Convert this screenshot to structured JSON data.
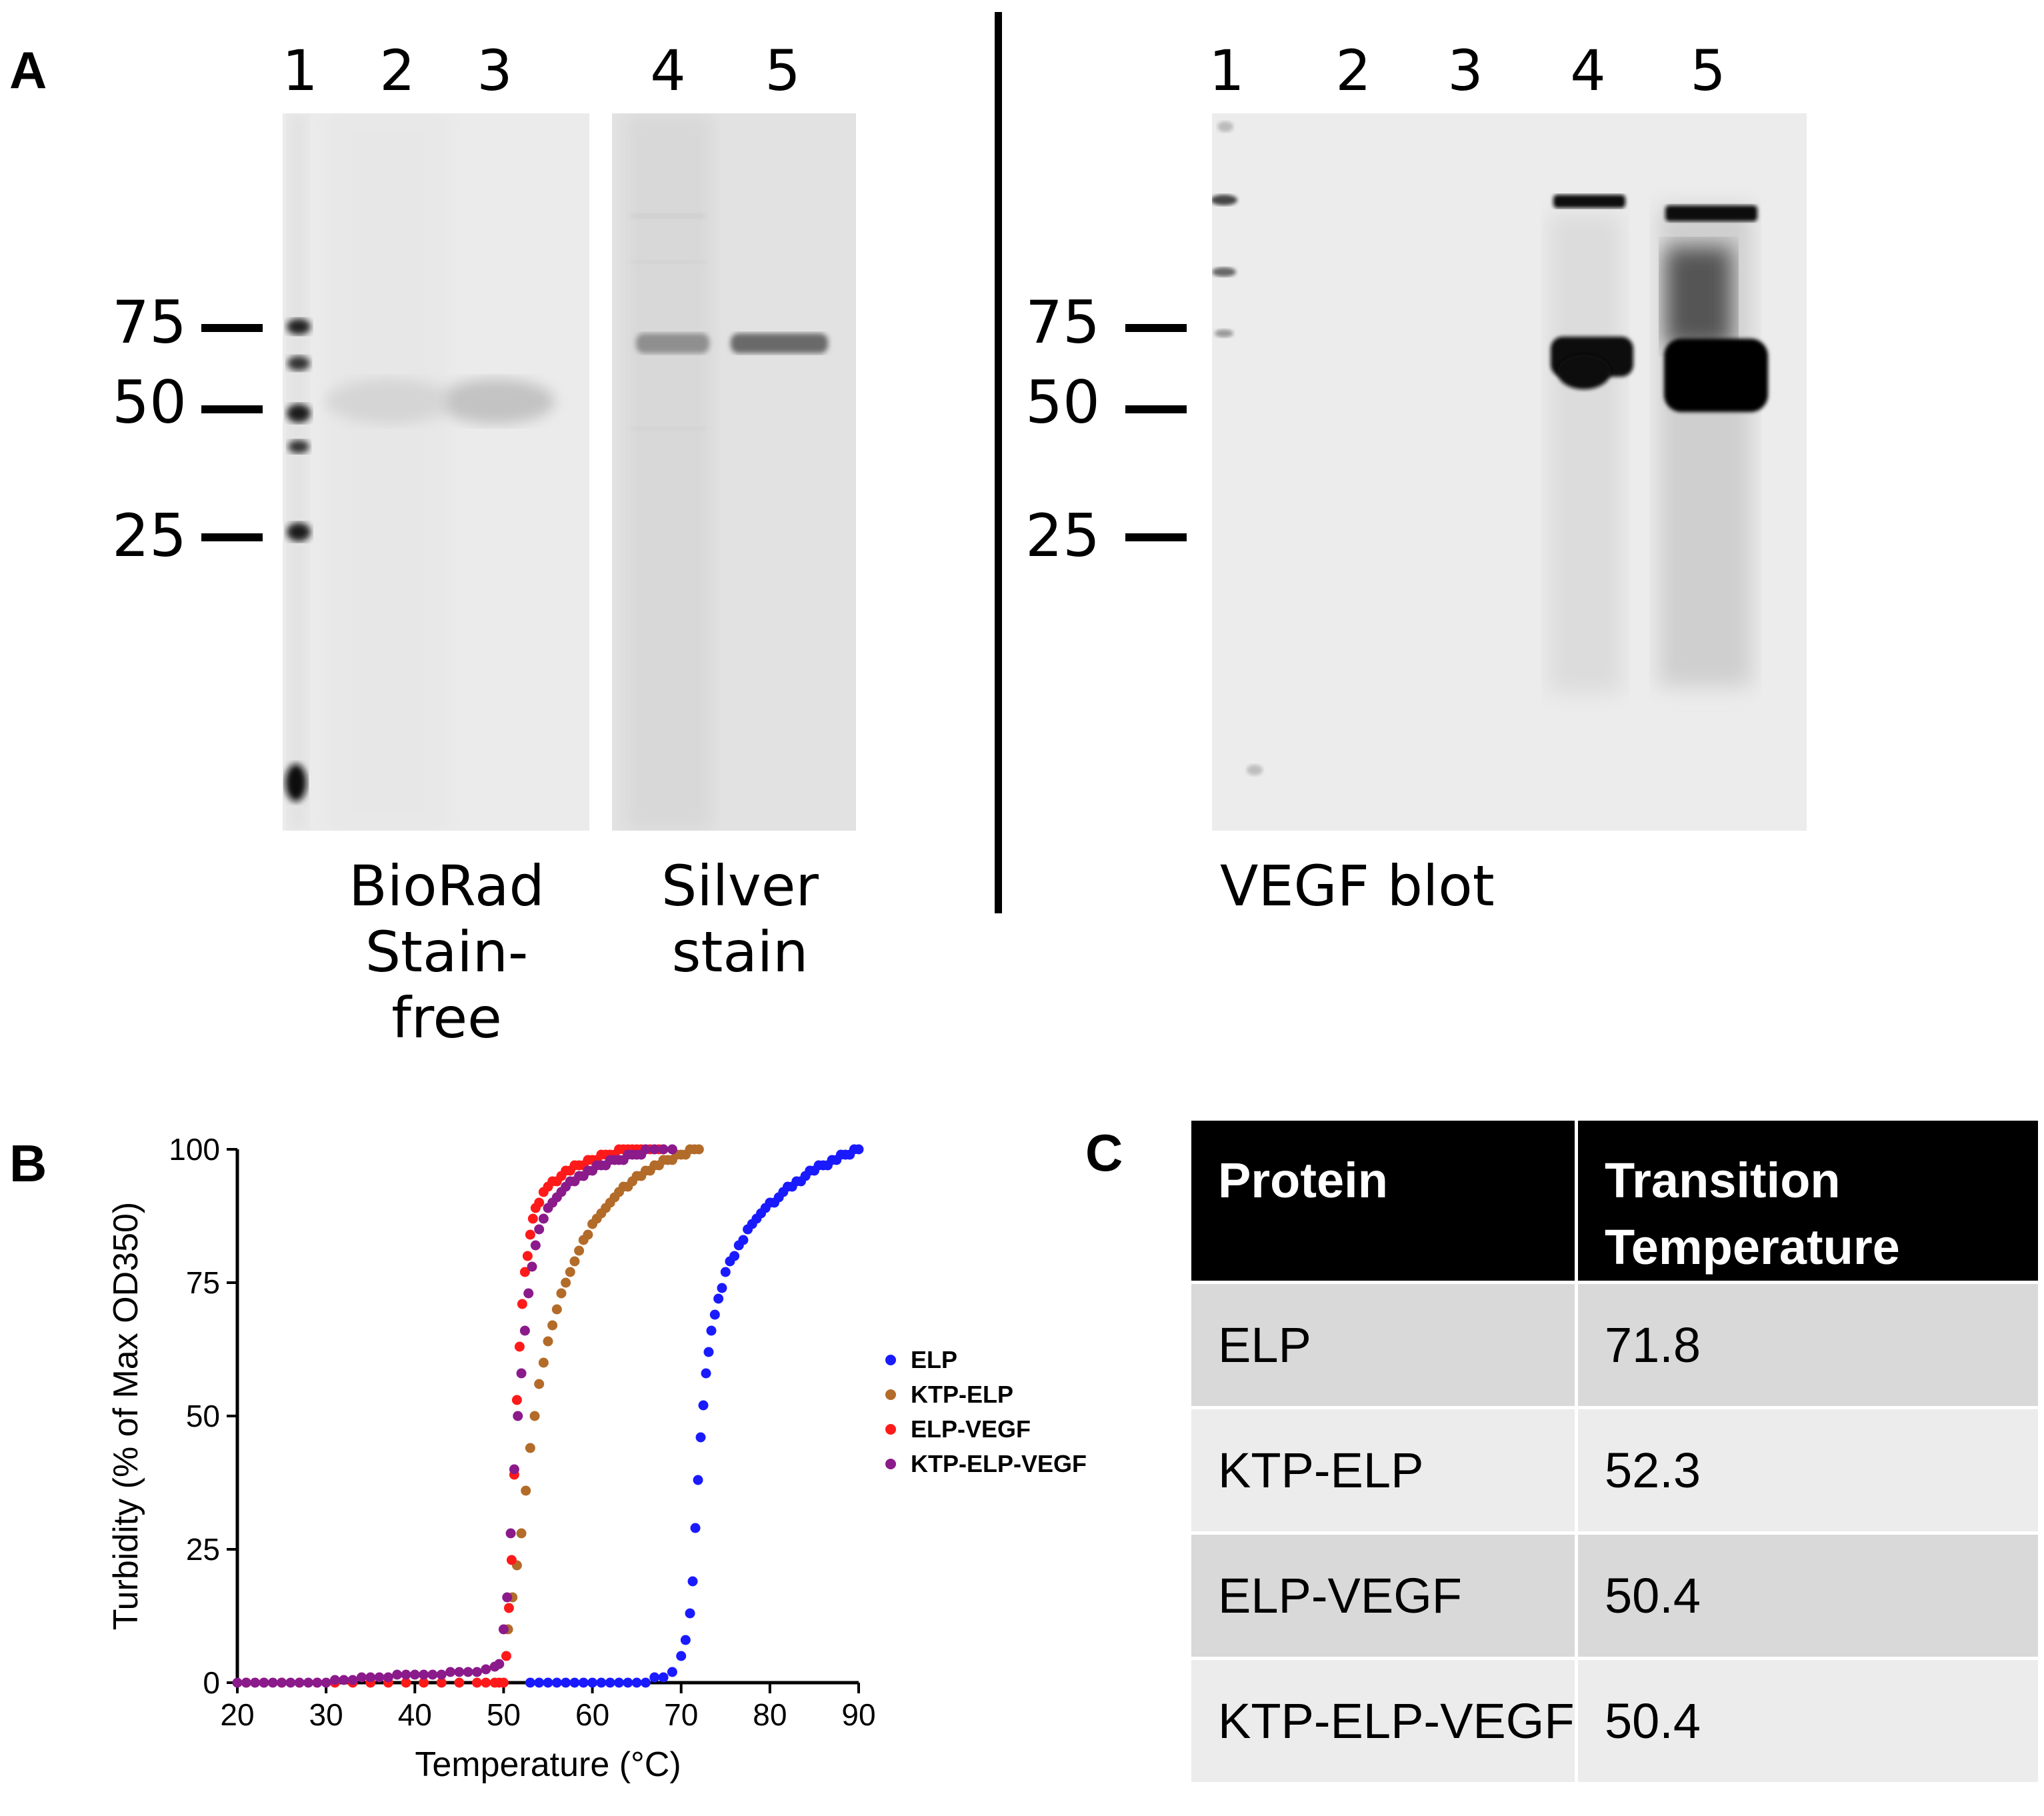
{
  "panel_a": {
    "letter": "A",
    "lanes_left": [
      "1",
      "2",
      "3",
      "4",
      "5"
    ],
    "lanes_right": [
      "1",
      "2",
      "3",
      "4",
      "5"
    ],
    "mw_markers": [
      "75",
      "50",
      "25"
    ],
    "gel_labels": {
      "stainfree": "BioRad Stain-free",
      "silver": "Silver stain",
      "blot": "VEGF blot"
    }
  },
  "panel_b": {
    "letter": "B"
  },
  "panel_c": {
    "letter": "C",
    "table": {
      "headers": [
        "Protein",
        "Transition Temperature"
      ],
      "rows": [
        [
          "ELP",
          "71.8"
        ],
        [
          "KTP-ELP",
          "52.3"
        ],
        [
          "ELP-VEGF",
          "50.4"
        ],
        [
          "KTP-ELP-VEGF",
          "50.4"
        ]
      ]
    }
  },
  "chart_data": {
    "type": "scatter",
    "xlabel": "Temperature (°C)",
    "ylabel": "Turbidity (% of Max OD350)",
    "xlim": [
      20,
      90
    ],
    "ylim": [
      0,
      100
    ],
    "xticks": [
      20,
      30,
      40,
      50,
      60,
      70,
      80,
      90
    ],
    "yticks": [
      0,
      25,
      50,
      75,
      100
    ],
    "legend_position": "right",
    "grid": false,
    "series": [
      {
        "name": "ELP",
        "color": "#1a1aff",
        "x": [
          53,
          54,
          55,
          56,
          57,
          58,
          59,
          60,
          61,
          62,
          63,
          64,
          65,
          66,
          67,
          68,
          69,
          70,
          70.5,
          71,
          71.3,
          71.6,
          71.9,
          72.2,
          72.5,
          72.8,
          73.1,
          73.4,
          73.8,
          74.2,
          74.6,
          75,
          75.5,
          76,
          76.5,
          77,
          77.5,
          78,
          78.5,
          79,
          79.5,
          80,
          80.5,
          81,
          81.5,
          82,
          82.5,
          83,
          83.5,
          84,
          84.5,
          85,
          85.5,
          86,
          86.5,
          87,
          87.5,
          88,
          88.5,
          89,
          89.5,
          90
        ],
        "y": [
          0,
          0,
          0,
          0,
          0,
          0,
          0,
          0,
          0,
          0,
          0,
          0,
          0,
          0,
          1,
          1,
          2,
          5,
          8,
          13,
          19,
          29,
          38,
          46,
          52,
          58,
          62,
          66,
          69,
          72,
          74,
          77,
          79,
          80,
          82,
          83,
          85,
          86,
          87,
          88,
          89,
          90,
          90,
          91,
          92,
          93,
          93,
          94,
          94,
          95,
          96,
          96,
          97,
          97,
          97,
          98,
          98,
          99,
          99,
          99,
          100,
          100
        ]
      },
      {
        "name": "KTP-ELP",
        "color": "#b36b29",
        "x": [
          50.5,
          51,
          51.5,
          52,
          52.5,
          53,
          53.5,
          54,
          54.5,
          55,
          55.5,
          56,
          56.5,
          57,
          57.5,
          58,
          58.5,
          59,
          59.5,
          60,
          60.5,
          61,
          61.5,
          62,
          62.5,
          63,
          63.5,
          64,
          64.5,
          65,
          65.5,
          66,
          66.5,
          67,
          67.5,
          68,
          68.5,
          69,
          69.5,
          70,
          70.5,
          71,
          71.5,
          72
        ],
        "y": [
          10,
          16,
          22,
          28,
          36,
          44,
          50,
          56,
          60,
          64,
          67,
          70,
          73,
          75,
          77,
          79,
          81,
          83,
          84,
          86,
          87,
          88,
          89,
          90,
          91,
          92,
          93,
          93,
          94,
          95,
          95,
          96,
          96,
          97,
          97,
          98,
          98,
          98,
          99,
          99,
          99,
          100,
          100,
          100
        ]
      },
      {
        "name": "ELP-VEGF",
        "color": "#ff1a1a",
        "x": [
          21,
          23,
          25,
          27,
          29,
          31,
          33,
          35,
          37,
          39,
          41,
          43,
          45,
          47,
          48,
          49,
          49.5,
          50,
          50.3,
          50.6,
          50.9,
          51.2,
          51.5,
          51.8,
          52.1,
          52.4,
          52.7,
          53,
          53.3,
          53.6,
          54,
          54.5,
          55,
          55.5,
          56,
          56.5,
          57,
          57.5,
          58,
          58.5,
          59,
          59.5,
          60,
          60.5,
          61,
          61.5,
          62,
          62.5,
          63,
          63.5,
          64,
          64.5,
          65,
          65.5,
          66,
          66.5,
          67,
          67.5,
          68
        ],
        "y": [
          0,
          0,
          0,
          0,
          0,
          0,
          0,
          0,
          0,
          0,
          0,
          0,
          0,
          0,
          0,
          0,
          0,
          0,
          5,
          14,
          23,
          39,
          53,
          63,
          71,
          77,
          80,
          84,
          87,
          89,
          90,
          92,
          93,
          94,
          94,
          95,
          96,
          96,
          97,
          97,
          97,
          98,
          98,
          98,
          99,
          99,
          99,
          99,
          100,
          100,
          100,
          100,
          100,
          100,
          100,
          100,
          100,
          100,
          100
        ]
      },
      {
        "name": "KTP-ELP-VEGF",
        "color": "#8b1a8b",
        "x": [
          20,
          21,
          22,
          23,
          24,
          25,
          26,
          27,
          28,
          29,
          30,
          31,
          32,
          33,
          34,
          35,
          36,
          37,
          38,
          39,
          40,
          41,
          42,
          43,
          44,
          45,
          46,
          47,
          48,
          49,
          49.5,
          50,
          50.4,
          50.8,
          51.2,
          51.6,
          52,
          52.4,
          52.8,
          53.2,
          53.6,
          54,
          54.5,
          55,
          55.5,
          56,
          56.5,
          57,
          57.5,
          58,
          58.5,
          59,
          59.5,
          60,
          60.5,
          61,
          61.5,
          62,
          62.5,
          63,
          63.5,
          64,
          64.5,
          65,
          65.5,
          66,
          67,
          68,
          69
        ],
        "y": [
          0,
          0,
          0,
          0,
          0,
          0,
          0,
          0,
          0,
          0,
          0,
          0.5,
          0.5,
          0.5,
          1,
          1,
          1,
          1,
          1.5,
          1.5,
          1.5,
          1.5,
          1.5,
          1.5,
          2,
          2,
          2,
          2,
          2.5,
          3,
          3.5,
          10,
          16,
          28,
          40,
          50,
          58,
          66,
          73,
          78,
          82,
          85,
          87,
          89,
          90,
          91,
          92,
          93,
          94,
          94,
          95,
          95,
          96,
          96,
          97,
          97,
          97,
          98,
          98,
          98,
          98,
          99,
          99,
          99,
          99,
          100,
          100,
          100,
          100
        ]
      }
    ]
  }
}
